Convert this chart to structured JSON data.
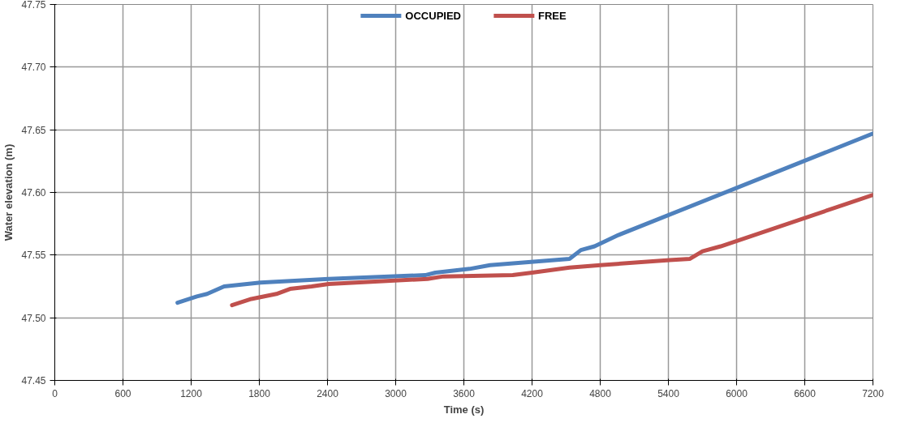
{
  "chart_data": {
    "type": "line",
    "xlabel": "Time (s)",
    "ylabel": "Water elevation (m)",
    "xlim": [
      0,
      7200
    ],
    "xticks": [
      0,
      600,
      1200,
      1800,
      2400,
      3000,
      3600,
      4200,
      4800,
      5400,
      6000,
      6600,
      7200
    ],
    "ylim": [
      47.45,
      47.75
    ],
    "yticks": [
      {
        "value": 47.45,
        "label": "47.45"
      },
      {
        "value": 47.5,
        "label": "47.50"
      },
      {
        "value": 47.55,
        "label": "47.55"
      },
      {
        "value": 47.6,
        "label": "47.60"
      },
      {
        "value": 47.65,
        "label": "47.65"
      },
      {
        "value": 47.7,
        "label": "47.70"
      },
      {
        "value": 47.75,
        "label": "47.75"
      }
    ],
    "grid": true,
    "legend": "top",
    "marker": "none",
    "line_style": "solid",
    "series": [
      {
        "name": "OCCUPIED",
        "color": "#4f81bd",
        "x": [
          1080,
          1250,
          1340,
          1490,
          1810,
          2410,
          3260,
          3350,
          3650,
          3830,
          4530,
          4630,
          4750,
          4960,
          7200
        ],
        "values": [
          47.512,
          47.517,
          47.519,
          47.525,
          47.528,
          47.531,
          47.534,
          47.536,
          47.539,
          47.542,
          47.547,
          47.554,
          47.557,
          47.566,
          47.647
        ]
      },
      {
        "name": "FREE",
        "color": "#c0504d",
        "x": [
          1560,
          1730,
          1950,
          2070,
          2260,
          2410,
          3280,
          3420,
          4030,
          4200,
          4530,
          4800,
          5410,
          5590,
          5700,
          5860,
          7200
        ],
        "values": [
          47.51,
          47.515,
          47.519,
          47.523,
          47.525,
          47.527,
          47.531,
          47.533,
          47.534,
          47.536,
          47.54,
          47.542,
          47.546,
          47.547,
          47.553,
          47.557,
          47.598
        ]
      }
    ]
  }
}
